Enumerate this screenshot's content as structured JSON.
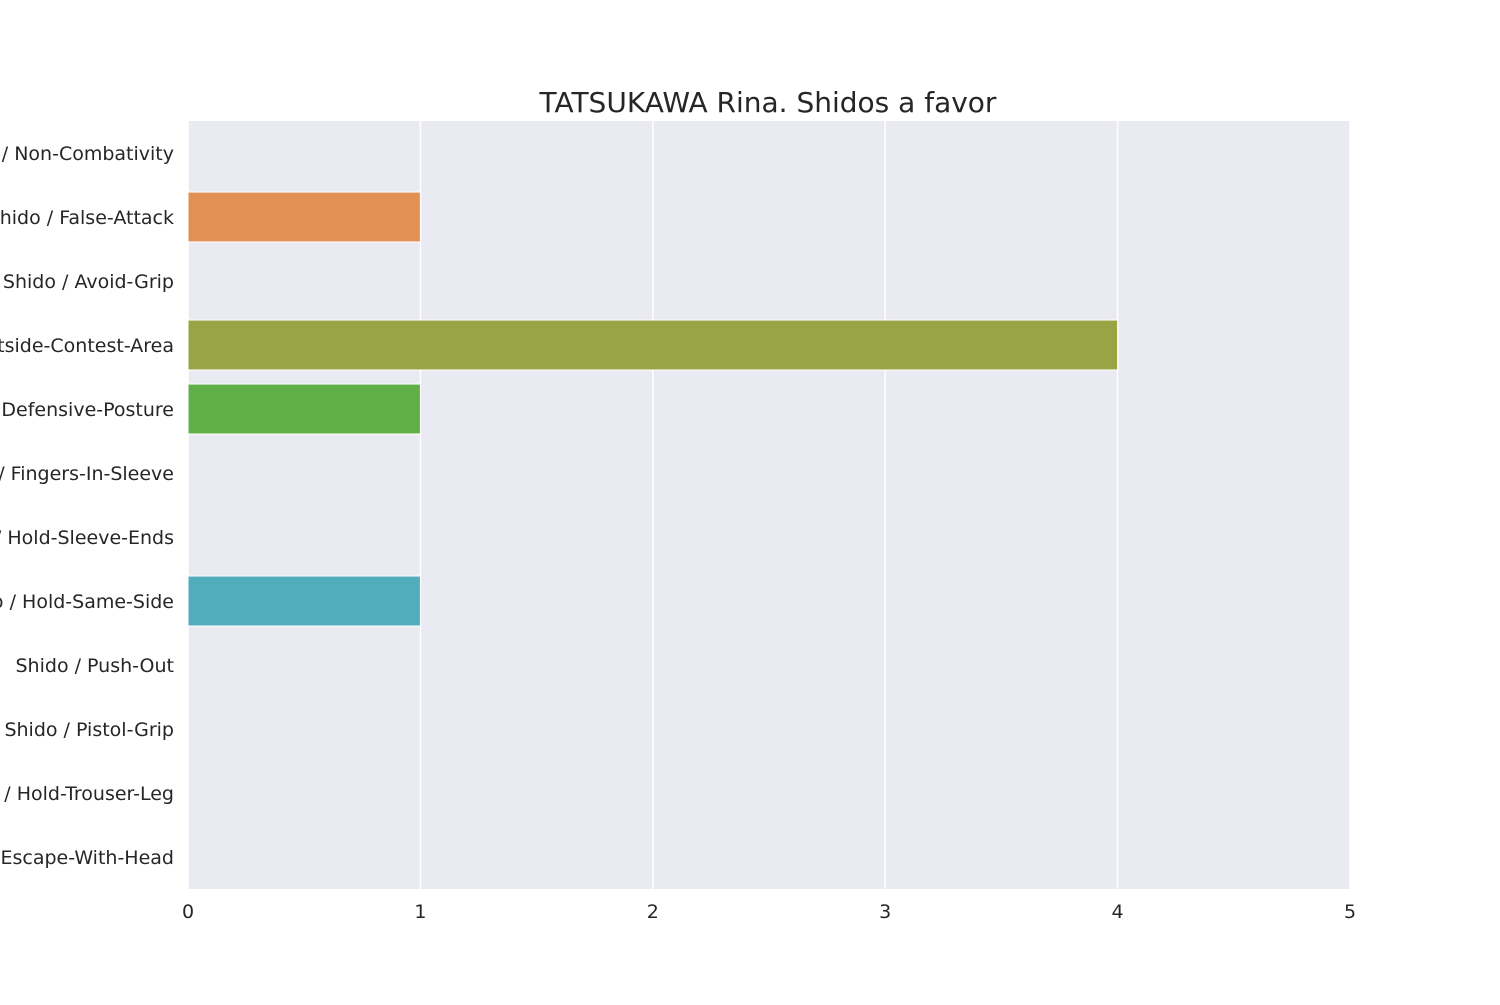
{
  "chart_data": {
    "type": "bar",
    "orientation": "horizontal",
    "title": "TATSUKAWA Rina. Shidos a favor",
    "xlabel": "",
    "ylabel": "",
    "xlim": [
      0,
      5
    ],
    "xticks": [
      "0",
      "1",
      "2",
      "3",
      "4",
      "5"
    ],
    "grid": true,
    "categories": [
      "Shido / Non-Combativity",
      "Shido / False-Attack",
      "Shido / Avoid-Grip",
      "Shido / Outside-Contest-Area",
      "Shido / Defensive-Posture",
      "Shido / Fingers-In-Sleeve",
      "Shido / Hold-Sleeve-Ends",
      "Shido / Hold-Same-Side",
      "Shido / Push-Out",
      "Shido / Pistol-Grip",
      "Shido / Hold-Trouser-Leg",
      "Shido / Escape-With-Head"
    ],
    "values": [
      0,
      1,
      0,
      4,
      1,
      0,
      0,
      1,
      0,
      0,
      0,
      0
    ],
    "colors": [
      "#E8746B",
      "#E19153",
      "#C3A14B",
      "#99A445",
      "#60AF47",
      "#4FB278",
      "#4EB3A6",
      "#51ACBC",
      "#52A5CC",
      "#95A4E6",
      "#C989DE",
      "#E577C4"
    ],
    "background_color": "#EAEAF2",
    "grid_color": "#FFFFFF"
  }
}
